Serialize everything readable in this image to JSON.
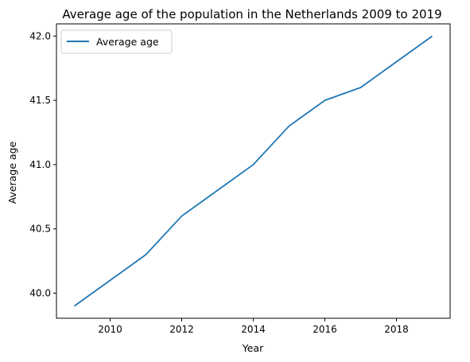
{
  "chart_data": {
    "type": "line",
    "title": "Average age of the population in the Netherlands 2009 to 2019",
    "xlabel": "Year",
    "ylabel": "Average age",
    "x": [
      2009,
      2010,
      2011,
      2012,
      2013,
      2014,
      2015,
      2016,
      2017,
      2018,
      2019
    ],
    "series": [
      {
        "name": "Average age",
        "color": "#1f77b4",
        "values": [
          39.9,
          40.1,
          40.3,
          40.6,
          40.8,
          41.0,
          41.3,
          41.5,
          41.6,
          41.8,
          42.0
        ]
      }
    ],
    "xlim": [
      2008.5,
      2019.5
    ],
    "ylim": [
      39.805,
      42.095
    ],
    "xticks": [
      2010,
      2012,
      2014,
      2016,
      2018
    ],
    "xtick_labels": [
      "2010",
      "2012",
      "2014",
      "2016",
      "2018"
    ],
    "yticks": [
      40.0,
      40.5,
      41.0,
      41.5,
      42.0
    ],
    "ytick_labels": [
      "40.0",
      "40.5",
      "41.0",
      "41.5",
      "42.0"
    ],
    "grid": false,
    "legend_position": "upper-left"
  }
}
